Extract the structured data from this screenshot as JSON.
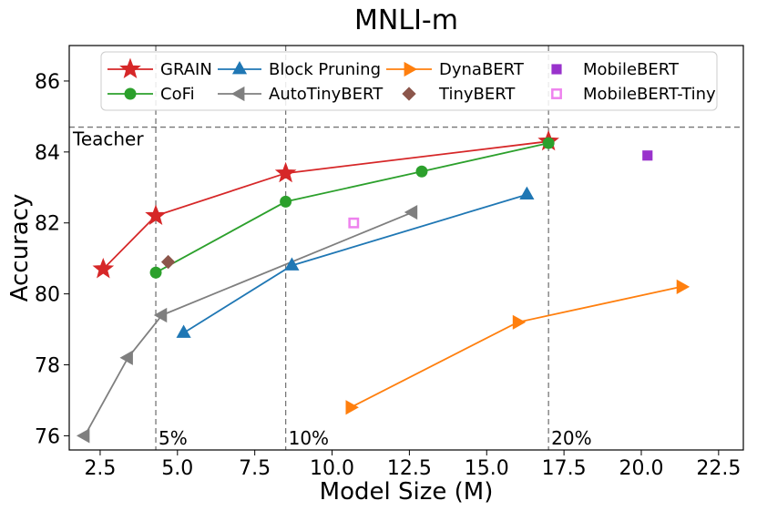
{
  "chart_data": {
    "type": "line",
    "title": "MNLI-m",
    "xlabel": "Model Size (M)",
    "ylabel": "Accuracy",
    "xlim": [
      1.5,
      23.3
    ],
    "ylim": [
      75.6,
      87.0
    ],
    "xticks": [
      "2.5",
      "5.0",
      "7.5",
      "10.0",
      "12.5",
      "15.0",
      "17.5",
      "20.0",
      "22.5"
    ],
    "yticks": [
      "76",
      "78",
      "80",
      "82",
      "84",
      "86"
    ],
    "grid": false,
    "legend_position": "top",
    "reference_lines": {
      "teacher": {
        "y": 84.7,
        "label": "Teacher"
      },
      "size_markers": [
        {
          "x": 4.3,
          "label": "5%"
        },
        {
          "x": 8.5,
          "label": "10%"
        },
        {
          "x": 17.0,
          "label": "20%"
        }
      ]
    },
    "series": [
      {
        "name": "GRAIN",
        "color": "#d62728",
        "marker": "star",
        "line": true,
        "x": [
          2.6,
          4.3,
          8.5,
          17.0
        ],
        "y": [
          80.7,
          82.2,
          83.4,
          84.3
        ]
      },
      {
        "name": "CoFi",
        "color": "#2ca02c",
        "marker": "circle",
        "line": true,
        "x": [
          4.3,
          8.5,
          12.9,
          17.0
        ],
        "y": [
          80.6,
          82.6,
          83.45,
          84.25
        ]
      },
      {
        "name": "Block Pruning",
        "color": "#1f77b4",
        "marker": "triangle-up",
        "line": true,
        "x": [
          5.2,
          8.7,
          16.3
        ],
        "y": [
          78.9,
          80.8,
          82.8
        ]
      },
      {
        "name": "AutoTinyBERT",
        "color": "#7f7f7f",
        "marker": "triangle-left",
        "line": true,
        "x": [
          2.0,
          3.4,
          4.5,
          12.6
        ],
        "y": [
          76.0,
          78.2,
          79.4,
          82.3
        ]
      },
      {
        "name": "DynaBERT",
        "color": "#ff7f0e",
        "marker": "triangle-right",
        "line": true,
        "x": [
          10.6,
          16.0,
          21.3
        ],
        "y": [
          76.8,
          79.2,
          80.2
        ]
      },
      {
        "name": "TinyBERT",
        "color": "#8c564b",
        "marker": "diamond",
        "line": false,
        "x": [
          4.7
        ],
        "y": [
          80.9
        ]
      },
      {
        "name": "MobileBERT",
        "color": "#9932cc",
        "marker": "square",
        "line": false,
        "x": [
          20.2
        ],
        "y": [
          83.9
        ]
      },
      {
        "name": "MobileBERT-Tiny",
        "color": "#ee82ee",
        "marker": "square-open",
        "line": false,
        "x": [
          10.7
        ],
        "y": [
          82.0
        ]
      }
    ]
  }
}
